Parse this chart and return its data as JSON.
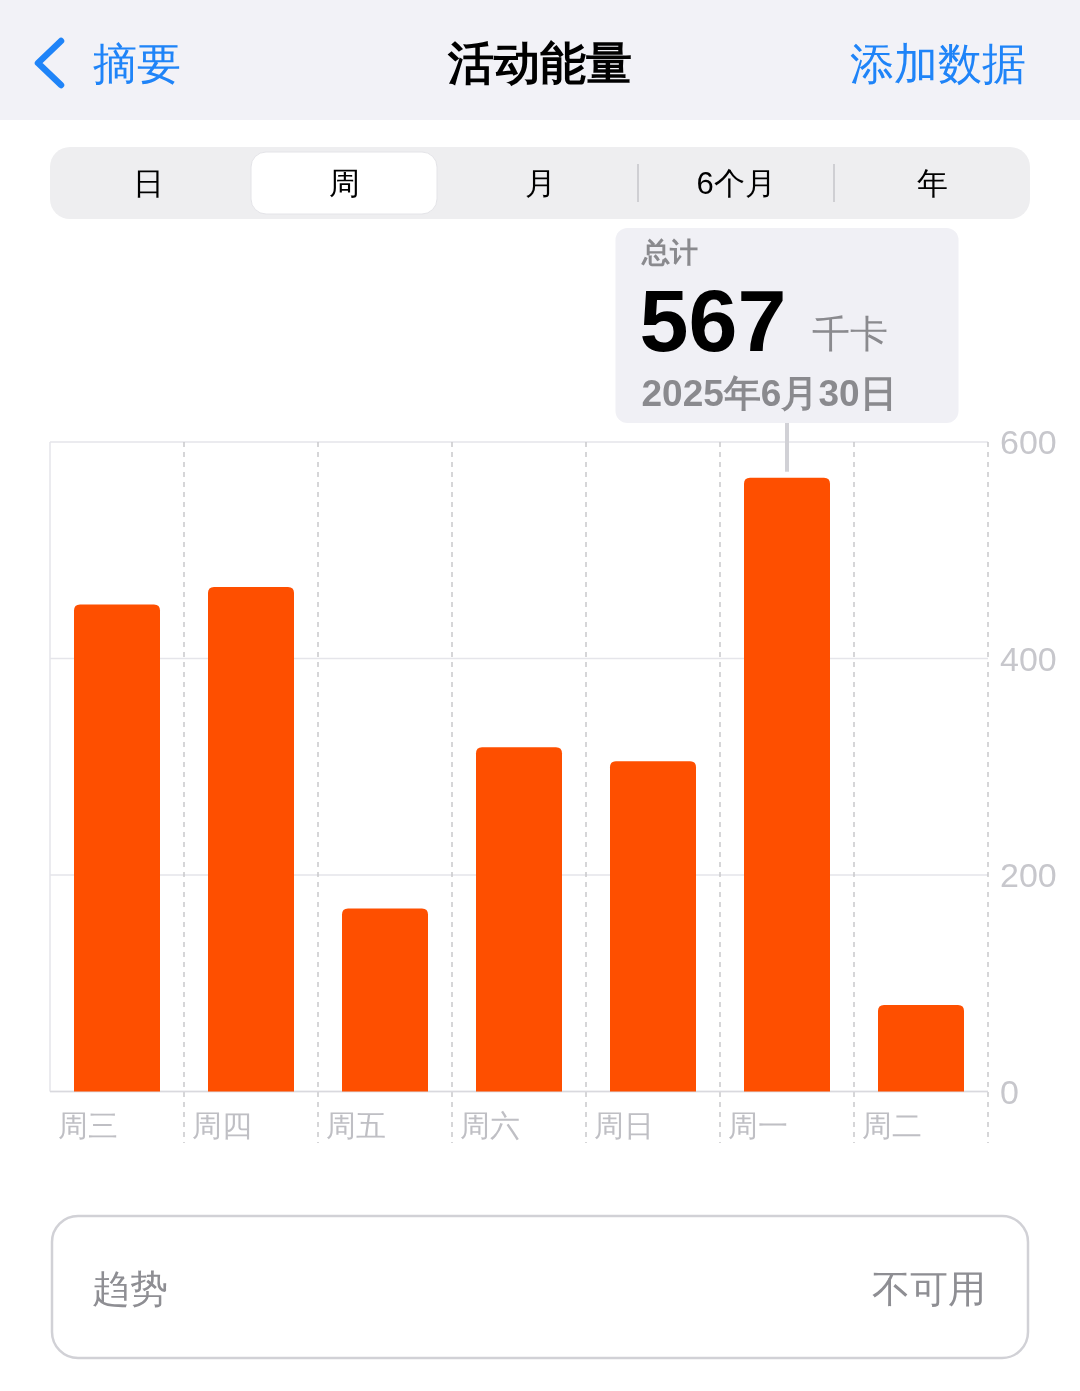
{
  "chart_data": {
    "type": "bar",
    "title": "活动能量",
    "categories": [
      "周三",
      "周四",
      "周五",
      "周六",
      "周日",
      "周一",
      "周二"
    ],
    "values": [
      450,
      466,
      169,
      318,
      305,
      567,
      80
    ],
    "color": "#fe4f00",
    "ylim": [
      0,
      600
    ],
    "yticks": [
      0,
      200,
      400,
      600
    ],
    "grid": true,
    "annotations": [
      "摘要",
      "添加数据",
      "日",
      "周",
      "月",
      "6个月",
      "年",
      "总计",
      {
        "text": "567",
        "x": "周一",
        "y": 567
      },
      "千卡",
      "2025年6月30日",
      "趋势",
      "不可用"
    ]
  }
}
